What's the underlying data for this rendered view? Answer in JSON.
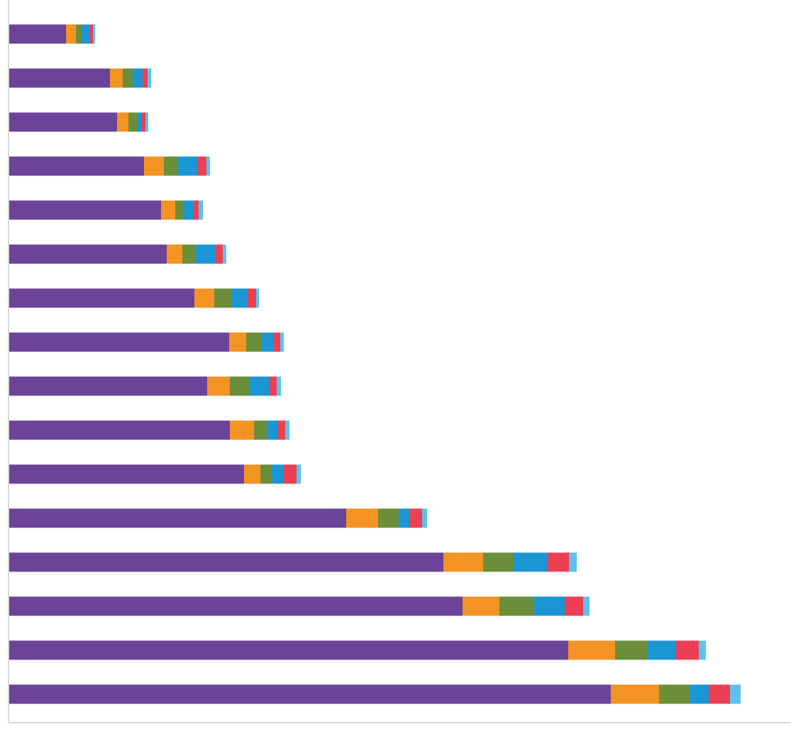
{
  "chart_data": {
    "type": "bar",
    "orientation": "horizontal",
    "stacked": true,
    "title": "",
    "xlabel": "",
    "ylabel": "",
    "legend": "none",
    "grid": false,
    "xlim": [
      0,
      1100
    ],
    "categories": [
      "",
      "",
      "",
      "",
      "",
      "",
      "",
      "",
      "",
      "",
      "",
      "",
      "",
      "",
      "",
      ""
    ],
    "series": [
      {
        "color": "#6b4399",
        "values": [
          80,
          142,
          152,
          190,
          214,
          222,
          261,
          310,
          279,
          311,
          331,
          475,
          612,
          639,
          788,
          848
        ]
      },
      {
        "color": "#f39321",
        "values": [
          14,
          18,
          16,
          28,
          20,
          22,
          28,
          24,
          32,
          34,
          23,
          45,
          56,
          52,
          66,
          68
        ]
      },
      {
        "color": "#6b8e3a",
        "values": [
          8,
          14,
          12,
          20,
          12,
          19,
          25,
          22,
          28,
          18,
          16,
          29,
          43,
          49,
          46,
          43
        ]
      },
      {
        "color": "#1b96d4",
        "values": [
          12,
          14,
          6,
          28,
          14,
          28,
          22,
          16,
          28,
          16,
          17,
          15,
          47,
          43,
          40,
          27
        ]
      },
      {
        "color": "#ec3f52",
        "values": [
          4,
          7,
          6,
          12,
          7,
          10,
          12,
          10,
          10,
          10,
          18,
          18,
          31,
          26,
          32,
          30
        ]
      },
      {
        "color": "#5bc2ee",
        "values": [
          3,
          5,
          4,
          5,
          6,
          5,
          4,
          5,
          6,
          6,
          6,
          7,
          11,
          9,
          10,
          15
        ]
      }
    ]
  }
}
